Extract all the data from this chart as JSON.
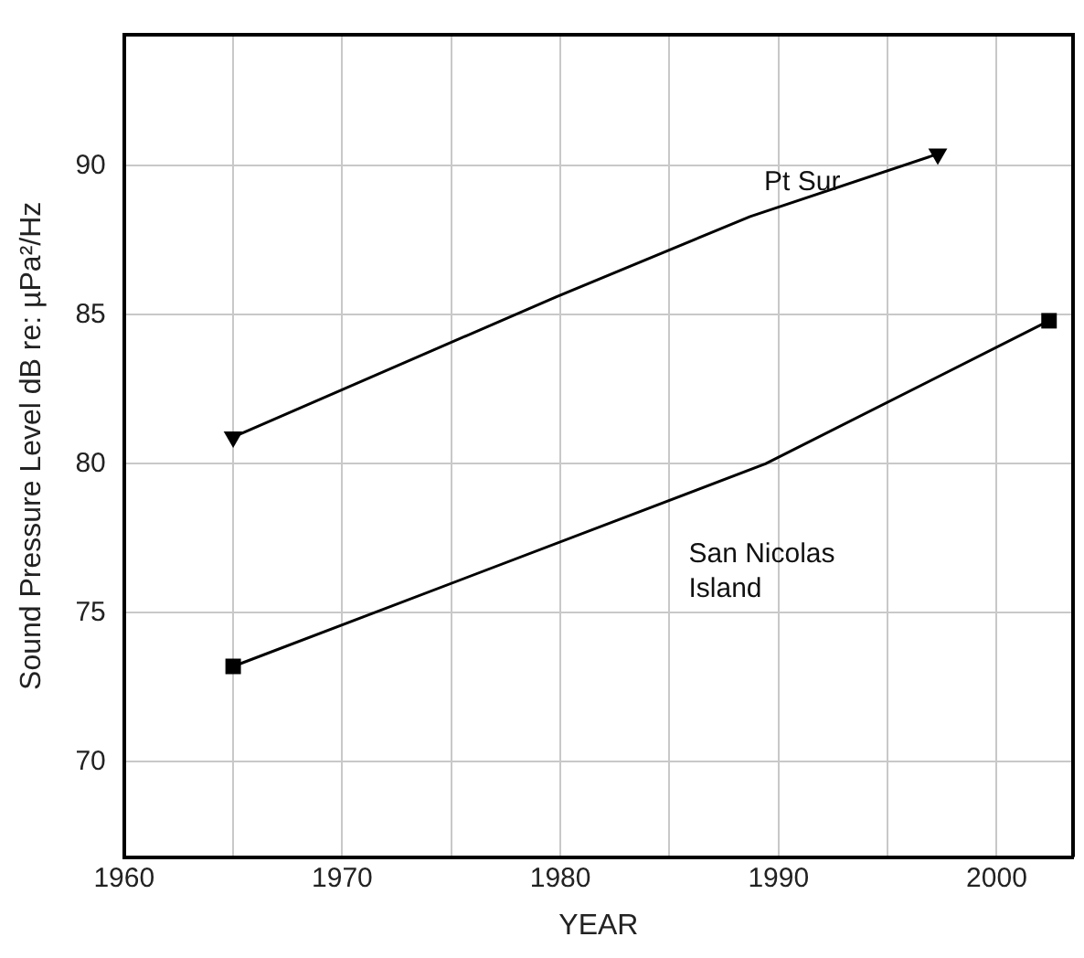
{
  "chart_data": {
    "type": "line",
    "xlabel": "YEAR",
    "ylabel": "Sound Pressure Level dB re: µPa²/Hz",
    "xlim": [
      1960,
      2003.5
    ],
    "xticks": [
      1960,
      {
        "value": 1965,
        "label": null
      },
      1970,
      {
        "value": 1975,
        "label": null
      },
      1980,
      {
        "value": 1985,
        "label": null
      },
      1990,
      {
        "value": 1995,
        "label": null
      },
      2000
    ],
    "ylim": [
      66.8,
      94.4
    ],
    "yticks": [
      70,
      75,
      80,
      85,
      90
    ],
    "grid": true,
    "legend": false,
    "line_style": "solid",
    "series": [
      {
        "name": "Pt Sur",
        "color": "#000000",
        "marker": "triangle",
        "x": [
          1965,
          1979.8,
          1988.7,
          1997.3
        ],
        "values": [
          80.9,
          85.6,
          88.3,
          90.4
        ]
      },
      {
        "name": "San Nicolas Island",
        "color": "#000000",
        "marker": "square",
        "x": [
          1965,
          1989.4,
          2002.4
        ],
        "values": [
          73.2,
          80,
          84.8
        ]
      }
    ]
  }
}
